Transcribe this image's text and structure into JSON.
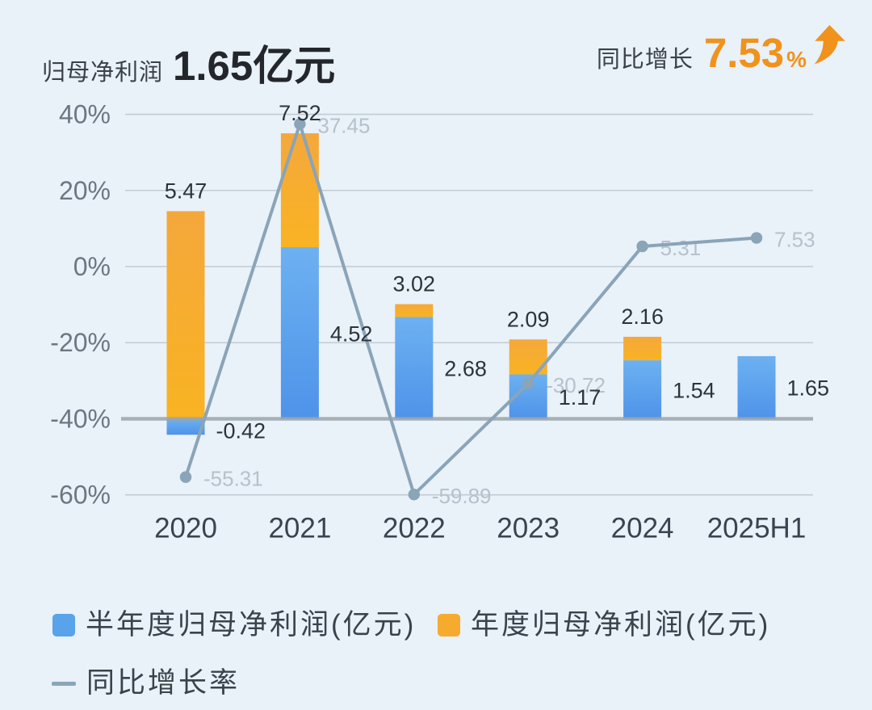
{
  "header": {
    "title": "归母净利润",
    "value": "1.65亿元",
    "growth_label": "同比增长",
    "growth_value": "7.53",
    "growth_unit": "%",
    "accent_color": "#f0921c"
  },
  "chart_data": {
    "type": "bar",
    "subtype": "stacked-bar-with-line",
    "categories": [
      "2020",
      "2021",
      "2022",
      "2023",
      "2024",
      "2025H1"
    ],
    "series": [
      {
        "name": "半年度归母净利润(亿元)",
        "type": "bar",
        "color_top": "#6db1f1",
        "color_bottom": "#4e93e9",
        "values": [
          -0.42,
          4.52,
          2.68,
          1.17,
          1.54,
          1.65
        ]
      },
      {
        "name": "年度归母净利润(亿元)",
        "type": "bar",
        "color_top": "#f4a83c",
        "color_bottom": "#f9b322",
        "values": [
          5.47,
          7.52,
          3.02,
          2.09,
          2.16,
          null
        ]
      },
      {
        "name": "同比增长率",
        "type": "line",
        "color": "#8aa4b8",
        "unit": "%",
        "values": [
          -55.31,
          37.45,
          -59.89,
          -30.72,
          5.31,
          7.53
        ]
      }
    ],
    "bar_total_labels": [
      "5.47",
      "7.52",
      "3.02",
      "2.09",
      "2.16",
      null
    ],
    "bar_half_labels": [
      "-0.42",
      "4.52",
      "2.68",
      "1.17",
      "1.54",
      "1.65"
    ],
    "line_labels": [
      "-55.31",
      "37.45",
      "-59.89",
      "-30.72",
      "5.31",
      "7.53"
    ],
    "y_axis": {
      "ticks": [
        "40%",
        "20%",
        "0%",
        "-20%",
        "-40%",
        "-60%"
      ],
      "tick_values": [
        40,
        20,
        0,
        -20,
        -40,
        -60
      ],
      "range": [
        -60,
        40
      ],
      "baseline_value": -40
    },
    "grid": true,
    "legend_position": "bottom",
    "colors": {
      "grid": "#aeb9bf",
      "baseline": "#9aa5ab",
      "value_label": "#2c333b",
      "line_label": "#b6c1cb",
      "y_tick": "#6e7781",
      "x_tick": "#3a434f"
    }
  },
  "legend": {
    "items": [
      {
        "label": "半年度归母净利润(亿元)",
        "color": "#58a3ea",
        "type": "square"
      },
      {
        "label": "年度归母净利润(亿元)",
        "color": "#f6ab2e",
        "type": "square"
      },
      {
        "label": "同比增长率",
        "color": "#8ba6b9",
        "type": "line"
      }
    ]
  }
}
